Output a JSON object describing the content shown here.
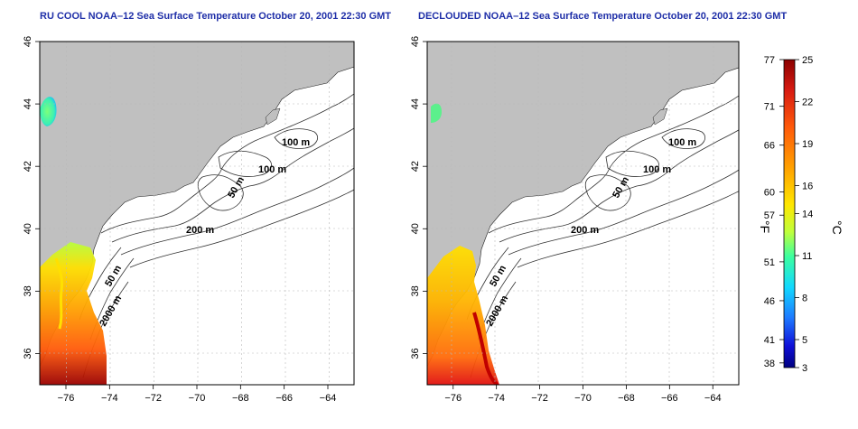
{
  "panels": [
    {
      "title": "RU COOL NOAA–12 Sea Surface Temperature October 20, 2001 22:30 GMT",
      "contour_labels": [
        "100 m",
        "100 m",
        "50 m",
        "200 m",
        "50 m",
        "2000 m"
      ]
    },
    {
      "title": "DECLOUDED NOAA–12 Sea Surface Temperature October 20, 2001 22:30 GMT",
      "contour_labels": [
        "100 m",
        "100 m",
        "50 m",
        "200 m",
        "50 m",
        "2000 m"
      ]
    }
  ],
  "axes": {
    "x_ticks": [
      "−76",
      "−74",
      "−72",
      "−70",
      "−68",
      "−66",
      "−64"
    ],
    "y_ticks": [
      "46",
      "44",
      "42",
      "40",
      "38",
      "36"
    ],
    "x_range": [
      -77.2,
      -62.8
    ],
    "y_range": [
      35.0,
      46.0
    ]
  },
  "colorbar": {
    "fahrenheit_label": "°F",
    "celsius_label": "°C",
    "fahrenheit_ticks": [
      "77",
      "71",
      "66",
      "60",
      "57",
      "51",
      "46",
      "41",
      "38"
    ],
    "celsius_ticks": [
      "25",
      "22",
      "19",
      "16",
      "14",
      "11",
      "8",
      "5",
      "3"
    ],
    "range_c": [
      3,
      25
    ],
    "colors": [
      "#8b0000",
      "#d81b12",
      "#ff5a0a",
      "#ffa000",
      "#ffe600",
      "#bfff3c",
      "#3cffa0",
      "#12d8ff",
      "#1e78ff",
      "#1010d8",
      "#000080"
    ]
  },
  "colors": {
    "land": "#c0c0c0",
    "ocean": "#ffffff",
    "title": "#1f2fa8",
    "contour": "#333333",
    "grid": "#b8b8b8"
  }
}
